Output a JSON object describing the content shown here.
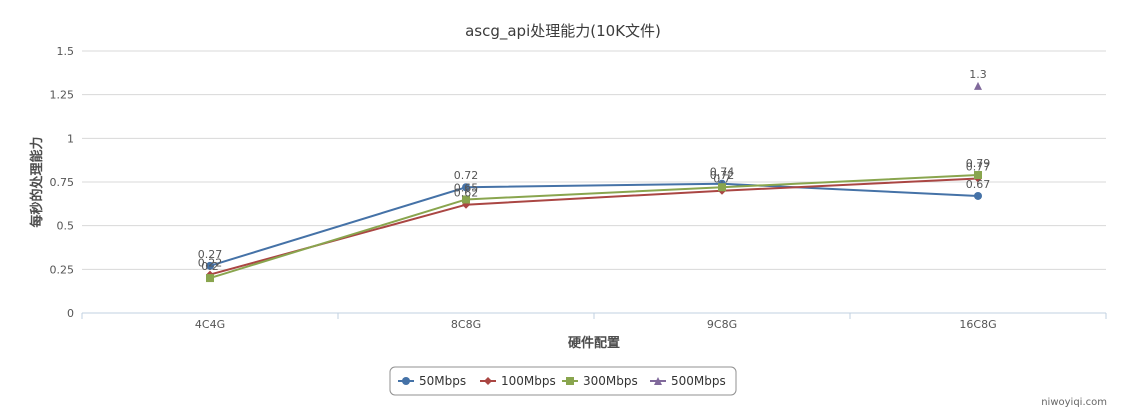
{
  "chart_data": {
    "type": "line",
    "title": "ascg_api处理能力(10K文件)",
    "xlabel": "硬件配置",
    "ylabel": "每秒的处理能力",
    "categories": [
      "4C4G",
      "8C8G",
      "9C8G",
      "16C8G"
    ],
    "ylim": [
      0,
      1.5
    ],
    "yticks": [
      "0",
      "0.25",
      "0.5",
      "0.75",
      "1",
      "1.25",
      "1.5"
    ],
    "grid": true,
    "legend_position": "bottom",
    "series": [
      {
        "name": "50Mbps",
        "color": "#4572a7",
        "marker": "circle",
        "values": [
          0.27,
          0.72,
          0.74,
          0.67
        ]
      },
      {
        "name": "100Mbps",
        "color": "#aa4643",
        "marker": "diamond",
        "values": [
          0.22,
          0.62,
          0.7,
          0.77
        ]
      },
      {
        "name": "300Mbps",
        "color": "#89a54e",
        "marker": "square",
        "values": [
          0.2,
          0.65,
          0.72,
          0.79
        ]
      },
      {
        "name": "500Mbps",
        "color": "#80699b",
        "marker": "triangle",
        "values": [
          null,
          null,
          null,
          1.3
        ]
      }
    ]
  },
  "watermark": "niwoyiqi.com"
}
